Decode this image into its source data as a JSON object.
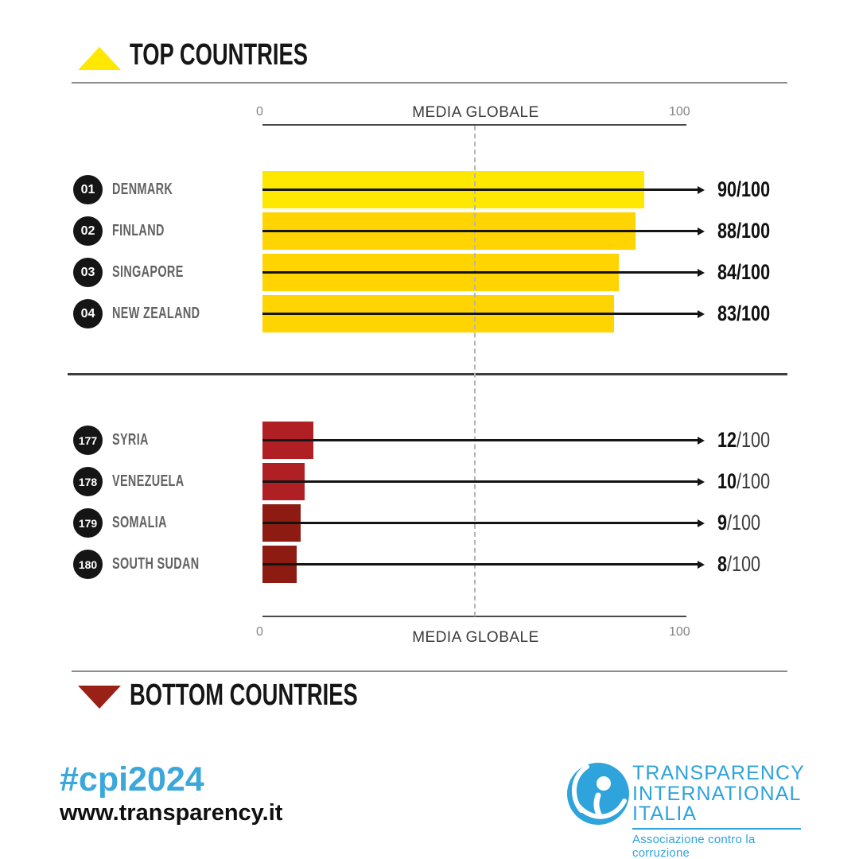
{
  "top_section": {
    "title": "TOP COUNTRIES"
  },
  "bottom_section": {
    "title": "BOTTOM COUNTRIES"
  },
  "axis": {
    "min_label": "0",
    "max_label": "100",
    "center_label": "MEDIA GLOBALE"
  },
  "chart_data": {
    "type": "bar",
    "orientation": "horizontal",
    "xlim": [
      0,
      100
    ],
    "axis_top_label": "MEDIA GLOBALE",
    "axis_bottom_label": "MEDIA GLOBALE",
    "center_dashed_line_value": 50,
    "value_suffix": "/100",
    "series": [
      {
        "name": "TOP COUNTRIES",
        "points": [
          {
            "rank": "01",
            "country": "DENMARK",
            "value": 90,
            "bar_color": "#FFE800"
          },
          {
            "rank": "02",
            "country": "FINLAND",
            "value": 88,
            "bar_color": "#FFD400"
          },
          {
            "rank": "03",
            "country": "SINGAPORE",
            "value": 84,
            "bar_color": "#FFD400"
          },
          {
            "rank": "04",
            "country": "NEW ZEALAND",
            "value": 83,
            "bar_color": "#FFD400"
          }
        ]
      },
      {
        "name": "BOTTOM COUNTRIES",
        "points": [
          {
            "rank": "177",
            "country": "SYRIA",
            "value": 12,
            "bar_color": "#B01F24"
          },
          {
            "rank": "178",
            "country": "VENEZUELA",
            "value": 10,
            "bar_color": "#B01F24"
          },
          {
            "rank": "179",
            "country": "SOMALIA",
            "value": 9,
            "bar_color": "#8D1B11"
          },
          {
            "rank": "180",
            "country": "SOUTH SUDAN",
            "value": 8,
            "bar_color": "#8D1B11"
          }
        ]
      }
    ]
  },
  "colors": {
    "accent_blue": "#2EA3DC",
    "yellow_bright": "#FFE800",
    "yellow": "#FFD400",
    "red_bright": "#B01F24",
    "red_dark": "#8D1B11",
    "triangle_down_red": "#9A2115"
  },
  "footer": {
    "hashtag": "#cpi2024",
    "url": "www.transparency.it",
    "logo_lines": [
      "TRANSPARENCY",
      "INTERNATIONAL",
      "ITALIA"
    ],
    "logo_tagline": "Associazione contro la corruzione"
  }
}
